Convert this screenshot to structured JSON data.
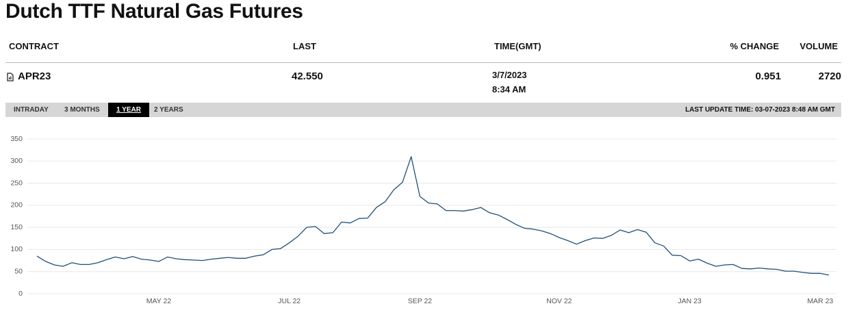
{
  "title": "Dutch TTF Natural Gas Futures",
  "table": {
    "headers": [
      "CONTRACT",
      "LAST",
      "TIME(GMT)",
      "% CHANGE",
      "VOLUME"
    ],
    "rows": [
      [
        "APR23",
        "42.550",
        [
          "3/7/2023",
          "8:34 AM"
        ],
        0.951,
        2720
      ]
    ]
  },
  "tabs": [
    "INTRADAY",
    "3 MONTHS",
    "1 YEAR",
    "2 YEARS"
  ],
  "active_tab": "1 YEAR",
  "last_update": "LAST UPDATE TIME: 03-07-2023 8:48 AM GMT",
  "chart_data": {
    "type": "line",
    "color": "#1f4e79",
    "categories": [
      null,
      null,
      null,
      null,
      null,
      null,
      null,
      null,
      null,
      null,
      null,
      null,
      null,
      null,
      "MAY 22",
      null,
      null,
      null,
      null,
      null,
      null,
      null,
      null,
      null,
      null,
      null,
      null,
      null,
      null,
      "JUL 22",
      null,
      null,
      null,
      null,
      null,
      null,
      null,
      null,
      null,
      null,
      null,
      null,
      null,
      null,
      "SEP 22",
      null,
      null,
      null,
      null,
      null,
      null,
      null,
      null,
      null,
      null,
      null,
      null,
      null,
      null,
      null,
      "NOV 22",
      null,
      null,
      null,
      null,
      null,
      null,
      null,
      null,
      null,
      null,
      null,
      null,
      null,
      null,
      "JAN 23",
      null,
      null,
      null,
      null,
      null,
      null,
      null,
      null,
      null,
      null,
      null,
      null,
      null,
      null,
      "MAR 23",
      null
    ],
    "values": [
      85,
      73,
      65,
      62,
      70,
      66,
      66,
      70,
      77,
      83,
      79,
      84,
      78,
      76,
      73,
      83,
      79,
      77,
      76,
      75,
      78,
      80,
      82,
      80,
      80,
      85,
      88,
      100,
      102,
      115,
      130,
      150,
      152,
      136,
      138,
      162,
      160,
      170,
      171,
      195,
      208,
      235,
      252,
      310,
      220,
      205,
      203,
      188,
      188,
      187,
      190,
      195,
      183,
      178,
      168,
      157,
      148,
      146,
      142,
      136,
      127,
      120,
      112,
      120,
      126,
      125,
      132,
      144,
      138,
      145,
      139,
      115,
      108,
      87,
      86,
      74,
      78,
      69,
      62,
      65,
      66,
      57,
      56,
      58,
      56,
      55,
      51,
      51,
      48,
      46,
      46,
      42
    ],
    "ylim": [
      0,
      350
    ],
    "yticks": [
      0,
      50,
      100,
      150,
      200,
      250,
      300,
      350
    ],
    "grid": true
  }
}
